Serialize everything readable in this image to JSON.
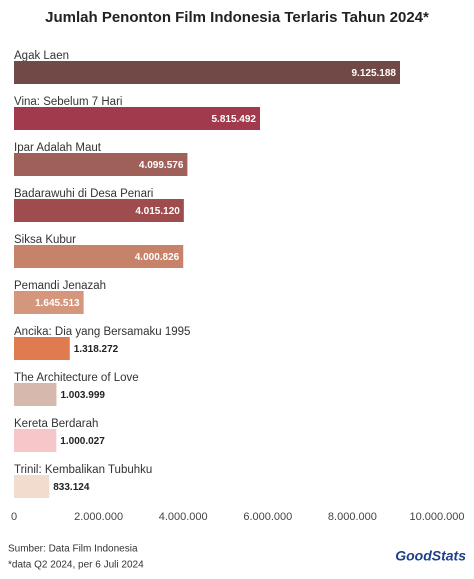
{
  "chart_data": {
    "type": "bar",
    "orientation": "horizontal",
    "title": "Jumlah Penonton Film Indonesia Terlaris Tahun 2024*",
    "categories": [
      "Agak Laen",
      "Vina: Sebelum 7 Hari",
      "Ipar Adalah Maut",
      "Badarawuhi di Desa Penari",
      "Siksa Kubur",
      "Pemandi Jenazah",
      "Ancika: Dia yang Bersamaku 1995",
      "The Architecture of Love",
      "Kereta Berdarah",
      "Trinil: Kembalikan Tubuhku"
    ],
    "values": [
      9125188,
      5815492,
      4099576,
      4015120,
      4000826,
      1645513,
      1318272,
      1003999,
      1000027,
      833124
    ],
    "value_labels": [
      "9.125.188",
      "5.815.492",
      "4.099.576",
      "4.015.120",
      "4.000.826",
      "1.645.513",
      "1.318.272",
      "1.003.999",
      "1.000.027",
      "833.124"
    ],
    "colors": [
      "#714a47",
      "#a23a4d",
      "#a0605a",
      "#9e4c4e",
      "#c7836a",
      "#d4967c",
      "#e07a4f",
      "#d6b8ad",
      "#f7c6c8",
      "#f2dccd"
    ],
    "xlim": [
      0,
      10000000
    ],
    "xticks": [
      0,
      {
        "value": 2000000,
        "label": "2.000.000"
      },
      {
        "value": 4000000,
        "label": "4.000.000"
      },
      {
        "value": 6000000,
        "label": "6.000.000"
      },
      {
        "value": 8000000,
        "label": "8.000.000"
      },
      {
        "value": 10000000,
        "label": "10.000.000"
      }
    ],
    "source": "Sumber: Data Film Indonesia",
    "note": "*data Q2 2024, per 6 Juli 2024",
    "brand": "GoodStats"
  }
}
